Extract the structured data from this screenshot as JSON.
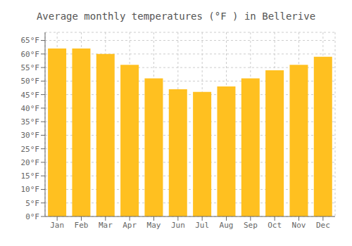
{
  "chart_data": {
    "type": "bar",
    "title": "Average monthly temperatures (°F ) in Bellerive",
    "categories": [
      "Jan",
      "Feb",
      "Mar",
      "Apr",
      "May",
      "Jun",
      "Jul",
      "Aug",
      "Sep",
      "Oct",
      "Nov",
      "Dec"
    ],
    "values": [
      62,
      62,
      60,
      56,
      51,
      47,
      46,
      48,
      51,
      54,
      56,
      59
    ],
    "color": "#FFC020",
    "ylim": [
      0,
      68
    ],
    "yticks": [
      {
        "value": 0,
        "label": "0°F"
      },
      {
        "value": 5,
        "label": "5°F"
      },
      {
        "value": 10,
        "label": "10°F"
      },
      {
        "value": 15,
        "label": "15°F"
      },
      {
        "value": 20,
        "label": "20°F"
      },
      {
        "value": 25,
        "label": "25°F"
      },
      {
        "value": 30,
        "label": "30°F"
      },
      {
        "value": 35,
        "label": "35°F"
      },
      {
        "value": 40,
        "label": "40°F"
      },
      {
        "value": 45,
        "label": "45°F"
      },
      {
        "value": 50,
        "label": "50°F"
      },
      {
        "value": 55,
        "label": "55°F"
      },
      {
        "value": 60,
        "label": "60°F"
      },
      {
        "value": 65,
        "label": "65°F"
      }
    ],
    "grid": true
  }
}
